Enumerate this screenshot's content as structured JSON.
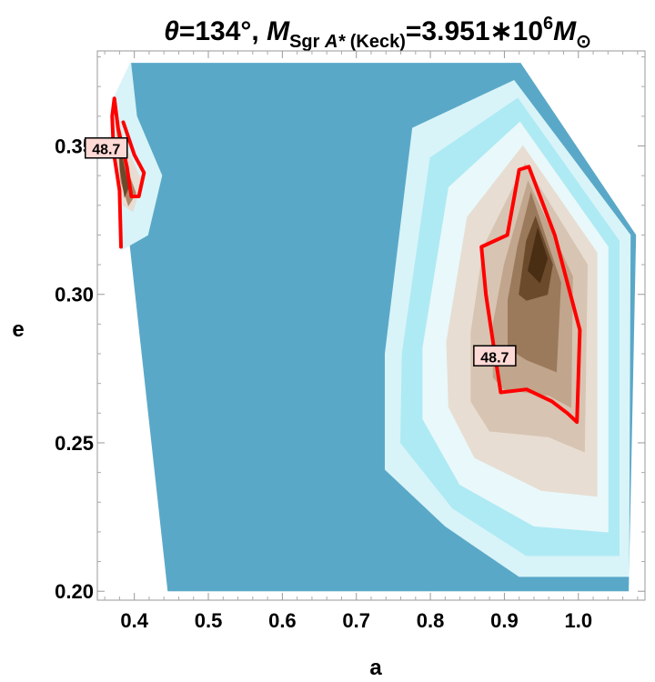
{
  "title": {
    "theta_symbol": "θ",
    "theta_value": "=134°, ",
    "mass_symbol": "M",
    "mass_sub_main": "Sgr ",
    "mass_sub_italic": "A*",
    "mass_sub_tail": " (Keck)",
    "mass_value": "=3.951∗10",
    "mass_exponent": "6",
    "solar_symbol": "M",
    "solar_sub": "⊙"
  },
  "chart_data": {
    "type": "contour",
    "xlabel": "a",
    "ylabel": "e",
    "xlim": [
      0.35,
      1.09
    ],
    "ylim": [
      0.197,
      0.382
    ],
    "xticks": [
      "0.4",
      "0.5",
      "0.6",
      "0.7",
      "0.8",
      "0.9",
      "1.0"
    ],
    "xtick_values": [
      0.4,
      0.5,
      0.6,
      0.7,
      0.8,
      0.9,
      1.0
    ],
    "yticks": [
      "0.20",
      "0.25",
      "0.30",
      "0.35"
    ],
    "ytick_values": [
      0.2,
      0.25,
      0.3,
      0.35
    ],
    "contour_level_label": "48.7",
    "contour_label_positions": [
      {
        "a": 0.362,
        "e": 0.349
      },
      {
        "a": 0.887,
        "e": 0.279
      }
    ],
    "colors": {
      "background_fill": "#5aa8c8",
      "light_cyan": "#c8f0f6",
      "tan": "#c4a48a",
      "dark_brown": "#5a3a1c",
      "contour_line": "#ff0000",
      "label_box": "#ffd9d6"
    },
    "domain": [
      {
        "a": 0.395,
        "e": 0.378
      },
      {
        "a": 0.922,
        "e": 0.378
      },
      {
        "a": 1.078,
        "e": 0.32
      },
      {
        "a": 1.068,
        "e": 0.2
      },
      {
        "a": 0.445,
        "e": 0.2
      },
      {
        "a": 0.372,
        "e": 0.366
      }
    ],
    "basins": [
      {
        "name": "right-peak",
        "layers": [
          {
            "color": "#d8f4f8",
            "points": [
              [
                0.739,
                0.241
              ],
              [
                0.739,
                0.28
              ],
              [
                0.776,
                0.356
              ],
              [
                0.913,
                0.372
              ],
              [
                1.07,
                0.32
              ],
              [
                1.068,
                0.205
              ],
              [
                0.92,
                0.205
              ],
              [
                0.82,
                0.222
              ]
            ]
          },
          {
            "color": "#aeeaf4",
            "points": [
              [
                0.76,
                0.25
              ],
              [
                0.762,
                0.28
              ],
              [
                0.8,
                0.346
              ],
              [
                0.918,
                0.366
              ],
              [
                1.055,
                0.318
              ],
              [
                1.055,
                0.212
              ],
              [
                0.93,
                0.212
              ],
              [
                0.83,
                0.228
              ]
            ]
          },
          {
            "color": "#e9f8fa",
            "points": [
              [
                0.79,
                0.258
              ],
              [
                0.79,
                0.282
              ],
              [
                0.825,
                0.336
              ],
              [
                0.921,
                0.358
              ],
              [
                1.04,
                0.316
              ],
              [
                1.04,
                0.22
              ],
              [
                0.94,
                0.222
              ],
              [
                0.84,
                0.236
              ]
            ]
          },
          {
            "color": "#e8ddd2",
            "points": [
              [
                0.825,
                0.262
              ],
              [
                0.822,
                0.284
              ],
              [
                0.85,
                0.326
              ],
              [
                0.925,
                0.35
              ],
              [
                1.025,
                0.314
              ],
              [
                1.025,
                0.232
              ],
              [
                0.95,
                0.234
              ],
              [
                0.86,
                0.245
              ]
            ]
          },
          {
            "color": "#d7c4b2",
            "points": [
              [
                0.855,
                0.264
              ],
              [
                0.855,
                0.287
              ],
              [
                0.872,
                0.316
              ],
              [
                0.928,
                0.344
              ],
              [
                1.012,
                0.31
              ],
              [
                1.008,
                0.247
              ],
              [
                0.96,
                0.252
              ],
              [
                0.88,
                0.254
              ]
            ]
          },
          {
            "color": "#c1a58c",
            "points": [
              [
                0.885,
                0.272
              ],
              [
                0.885,
                0.29
              ],
              [
                0.9,
                0.31
              ],
              [
                0.932,
                0.338
              ],
              [
                0.992,
                0.306
              ],
              [
                0.99,
                0.262
              ],
              [
                0.96,
                0.266
              ],
              [
                0.9,
                0.268
              ]
            ]
          },
          {
            "color": "#9b7a5c",
            "points": [
              [
                0.905,
                0.282
              ],
              [
                0.905,
                0.298
              ],
              [
                0.918,
                0.316
              ],
              [
                0.936,
                0.334
              ],
              [
                0.976,
                0.304
              ],
              [
                0.97,
                0.274
              ],
              [
                0.93,
                0.278
              ]
            ]
          },
          {
            "color": "#6b4a2c",
            "points": [
              [
                0.92,
                0.3
              ],
              [
                0.93,
                0.318
              ],
              [
                0.942,
                0.326
              ],
              [
                0.965,
                0.31
              ],
              [
                0.958,
                0.3
              ],
              [
                0.93,
                0.298
              ]
            ]
          },
          {
            "color": "#4a2e14",
            "points": [
              [
                0.932,
                0.308
              ],
              [
                0.945,
                0.322
              ],
              [
                0.958,
                0.312
              ],
              [
                0.948,
                0.304
              ]
            ]
          }
        ]
      },
      {
        "name": "left-peak",
        "layers": [
          {
            "color": "#d8f4f8",
            "points": [
              [
                0.372,
                0.366
              ],
              [
                0.395,
                0.378
              ],
              [
                0.403,
                0.36
              ],
              [
                0.437,
                0.34
              ],
              [
                0.418,
                0.32
              ],
              [
                0.383,
                0.315
              ],
              [
                0.378,
                0.34
              ]
            ]
          },
          {
            "color": "#e8ddd2",
            "points": [
              [
                0.373,
                0.364
              ],
              [
                0.388,
                0.35
              ],
              [
                0.41,
                0.338
              ],
              [
                0.398,
                0.328
              ],
              [
                0.385,
                0.33
              ],
              [
                0.378,
                0.345
              ]
            ]
          },
          {
            "color": "#b08868",
            "points": [
              [
                0.376,
                0.357
              ],
              [
                0.39,
                0.342
              ],
              [
                0.402,
                0.334
              ],
              [
                0.392,
                0.33
              ],
              [
                0.382,
                0.338
              ]
            ]
          },
          {
            "color": "#6b4a2c",
            "points": [
              [
                0.38,
                0.35
              ],
              [
                0.392,
                0.336
              ],
              [
                0.387,
                0.333
              ],
              [
                0.381,
                0.342
              ]
            ]
          }
        ]
      }
    ],
    "contour_lines": [
      {
        "closed": true,
        "points": [
          [
            0.869,
            0.316
          ],
          [
            0.904,
            0.32
          ],
          [
            0.92,
            0.342
          ],
          [
            0.933,
            0.343
          ],
          [
            0.968,
            0.32
          ],
          [
            1.002,
            0.288
          ],
          [
            0.998,
            0.257
          ],
          [
            0.985,
            0.26
          ],
          [
            0.964,
            0.264
          ],
          [
            0.93,
            0.268
          ],
          [
            0.895,
            0.267
          ],
          [
            0.887,
            0.28
          ],
          [
            0.875,
            0.3
          ]
        ]
      },
      {
        "closed": false,
        "points": [
          [
            0.382,
            0.316
          ],
          [
            0.38,
            0.335
          ],
          [
            0.372,
            0.348
          ],
          [
            0.37,
            0.36
          ],
          [
            0.373,
            0.366
          ],
          [
            0.378,
            0.356
          ],
          [
            0.39,
            0.343
          ],
          [
            0.396,
            0.333
          ],
          [
            0.406,
            0.333
          ],
          [
            0.413,
            0.341
          ],
          [
            0.4,
            0.347
          ],
          [
            0.385,
            0.358
          ]
        ]
      }
    ]
  }
}
